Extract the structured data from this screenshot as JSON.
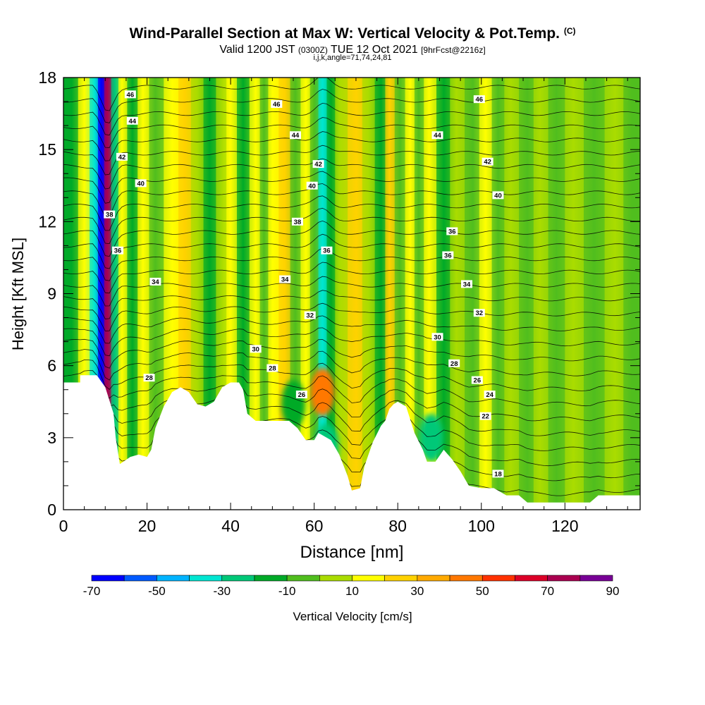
{
  "title": {
    "main": "Wind-Parallel Section at Max W: Vertical Velocity & Pot.Temp.",
    "copyright": "(C)",
    "valid_a": "Valid 1200 JST",
    "valid_utc": "(0300Z)",
    "valid_b": "TUE 12 Oct 2021",
    "forecast": "[9hrFcst@2216z]",
    "indices": "i,j,k,angle=71,74,24,81"
  },
  "chart_data": {
    "type": "heatmap",
    "xlabel": "Distance [nm]",
    "ylabel": "Height [Kft MSL]",
    "xlim": [
      0,
      138
    ],
    "ylim": [
      0,
      18
    ],
    "x_ticks": [
      0,
      20,
      40,
      60,
      80,
      100,
      120
    ],
    "y_ticks": [
      0,
      3,
      6,
      9,
      12,
      15,
      18
    ],
    "colorbar": {
      "label": "Vertical Velocity [cm/s]",
      "min": -70,
      "max": 90,
      "step": 10,
      "tick_labels": [
        "-70",
        "-50",
        "-30",
        "-10",
        "10",
        "30",
        "50",
        "70",
        "90"
      ],
      "colors": [
        "#0000ff",
        "#005aff",
        "#00b4ff",
        "#00e6d2",
        "#00c878",
        "#00aa28",
        "#50be1e",
        "#aadc00",
        "#ffff00",
        "#ffd200",
        "#ffaa00",
        "#ff7800",
        "#ff3200",
        "#dc0028",
        "#aa0050",
        "#780096"
      ]
    },
    "terrain": [
      [
        0,
        5.3
      ],
      [
        4,
        5.3
      ],
      [
        4,
        5.6
      ],
      [
        8,
        5.6
      ],
      [
        10,
        5.1
      ],
      [
        12,
        4.0
      ],
      [
        12.5,
        3.0
      ],
      [
        13.5,
        1.9
      ],
      [
        16,
        2.2
      ],
      [
        18,
        2.3
      ],
      [
        20,
        2.2
      ],
      [
        21,
        2.5
      ],
      [
        22,
        3.4
      ],
      [
        24,
        4.3
      ],
      [
        26,
        4.9
      ],
      [
        28,
        5.1
      ],
      [
        30,
        4.9
      ],
      [
        32,
        4.4
      ],
      [
        34,
        4.3
      ],
      [
        36,
        4.5
      ],
      [
        38,
        5.1
      ],
      [
        40,
        5.3
      ],
      [
        42,
        5.3
      ],
      [
        43,
        5.0
      ],
      [
        44,
        4.0
      ],
      [
        46,
        3.7
      ],
      [
        48,
        3.7
      ],
      [
        50,
        3.7
      ],
      [
        52,
        3.7
      ],
      [
        54,
        3.7
      ],
      [
        56,
        3.4
      ],
      [
        58,
        2.9
      ],
      [
        60,
        2.9
      ],
      [
        61,
        3.2
      ],
      [
        62,
        3.1
      ],
      [
        64,
        2.9
      ],
      [
        66,
        2.3
      ],
      [
        68,
        1.4
      ],
      [
        69,
        0.8
      ],
      [
        71,
        0.9
      ],
      [
        72,
        1.8
      ],
      [
        74,
        2.8
      ],
      [
        76,
        3.5
      ],
      [
        77,
        3.7
      ],
      [
        78,
        4.2
      ],
      [
        79,
        4.4
      ],
      [
        80,
        4.5
      ],
      [
        82,
        4.3
      ],
      [
        84,
        3.2
      ],
      [
        86,
        2.5
      ],
      [
        87,
        2.0
      ],
      [
        89,
        2.0
      ],
      [
        91,
        2.5
      ],
      [
        93,
        2.1
      ],
      [
        95,
        1.6
      ],
      [
        97,
        1.0
      ],
      [
        100,
        0.9
      ],
      [
        103,
        0.9
      ],
      [
        106,
        0.6
      ],
      [
        109,
        0.6
      ],
      [
        111,
        0.3
      ],
      [
        113,
        0.3
      ],
      [
        118,
        0.3
      ],
      [
        122,
        0.3
      ],
      [
        124,
        0.3
      ],
      [
        126,
        0.3
      ],
      [
        128,
        0.6
      ],
      [
        130,
        0.6
      ],
      [
        134,
        0.6
      ],
      [
        136,
        0.6
      ],
      [
        138,
        0.6
      ]
    ],
    "w_bands": [
      {
        "x": 2,
        "w": -15
      },
      {
        "x": 5,
        "w": 15
      },
      {
        "x": 7.5,
        "w": -40
      },
      {
        "x": 9,
        "w": -65
      },
      {
        "x": 10.5,
        "w": 70
      },
      {
        "x": 12.3,
        "w": -30
      },
      {
        "x": 14,
        "w": 12
      },
      {
        "x": 16.5,
        "w": -15
      },
      {
        "x": 19,
        "w": 10
      },
      {
        "x": 22,
        "w": -5
      },
      {
        "x": 26,
        "w": 18
      },
      {
        "x": 29,
        "w": 25
      },
      {
        "x": 32,
        "w": 5
      },
      {
        "x": 35,
        "w": -15
      },
      {
        "x": 38,
        "w": 8
      },
      {
        "x": 40,
        "w": 18
      },
      {
        "x": 43,
        "w": -12
      },
      {
        "x": 46,
        "w": 10
      },
      {
        "x": 48,
        "w": -10
      },
      {
        "x": 50,
        "w": 18
      },
      {
        "x": 53,
        "w": 25
      },
      {
        "x": 55.5,
        "w": -10
      },
      {
        "x": 58,
        "w": 15
      },
      {
        "x": 60,
        "w": -5
      },
      {
        "x": 62,
        "w": -35
      },
      {
        "x": 64,
        "w": -20
      },
      {
        "x": 66,
        "w": 8
      },
      {
        "x": 70,
        "w": 20
      },
      {
        "x": 73,
        "w": 5
      },
      {
        "x": 76,
        "w": -12
      },
      {
        "x": 78,
        "w": 25
      },
      {
        "x": 80.5,
        "w": -10
      },
      {
        "x": 83,
        "w": 18
      },
      {
        "x": 85,
        "w": -5
      },
      {
        "x": 87.5,
        "w": 15
      },
      {
        "x": 91,
        "w": -15
      },
      {
        "x": 94,
        "w": 5
      },
      {
        "x": 98,
        "w": -10
      },
      {
        "x": 101,
        "w": 14
      },
      {
        "x": 104,
        "w": -5
      },
      {
        "x": 107,
        "w": 5
      },
      {
        "x": 111,
        "w": -10
      },
      {
        "x": 114,
        "w": 5
      },
      {
        "x": 118,
        "w": -5
      },
      {
        "x": 122,
        "w": 5
      },
      {
        "x": 127,
        "w": -5
      },
      {
        "x": 132,
        "w": 5
      },
      {
        "x": 136,
        "w": -5
      }
    ],
    "w_blobs": [
      {
        "x": 62,
        "y": 4.9,
        "w": 45
      },
      {
        "x": 63,
        "y": 2.6,
        "w": -30
      },
      {
        "x": 88,
        "y": 3.0,
        "w": -30
      },
      {
        "x": 55,
        "y": 4.4,
        "w": -12
      },
      {
        "x": 30,
        "y": 3.5,
        "w": 20
      }
    ],
    "theta_contours": [
      {
        "label": "18",
        "base": 1.1,
        "x": 104,
        "y": 1.5
      },
      {
        "label": "22",
        "base": 3.7,
        "x": 101,
        "y": 3.9
      },
      {
        "label": "24",
        "base": 4.5,
        "x": 102,
        "y": 4.8
      },
      {
        "label": "26",
        "base": 4.8,
        "x": 57,
        "y": 4.8
      },
      {
        "label": "26",
        "base": 5.0,
        "x": 99,
        "y": 5.4
      },
      {
        "label": "28",
        "base": 5.5,
        "x": 20.5,
        "y": 5.5
      },
      {
        "label": "28",
        "base": 5.9,
        "x": 50,
        "y": 5.9
      },
      {
        "label": "28",
        "base": 6.0,
        "x": 93.5,
        "y": 6.1
      },
      {
        "label": "30",
        "base": 6.4,
        "x": 46,
        "y": 6.7
      },
      {
        "label": "30",
        "base": 7.0,
        "x": 89.5,
        "y": 7.2
      },
      {
        "label": "32",
        "base": 8.1,
        "x": 59,
        "y": 8.1
      },
      {
        "label": "32",
        "base": 8.4,
        "x": 99.5,
        "y": 8.2
      },
      {
        "label": "34",
        "base": 9.5,
        "x": 22,
        "y": 9.5
      },
      {
        "label": "34",
        "base": 9.6,
        "x": 53,
        "y": 9.6
      },
      {
        "label": "34",
        "base": 9.5,
        "x": 96.5,
        "y": 9.4
      },
      {
        "label": "36",
        "base": 10.8,
        "x": 13,
        "y": 10.8
      },
      {
        "label": "36",
        "base": 10.5,
        "x": 63,
        "y": 10.8
      },
      {
        "label": "36",
        "base": 10.8,
        "x": 92,
        "y": 10.6
      },
      {
        "label": "36",
        "base": 11.5,
        "x": 93,
        "y": 11.6
      },
      {
        "label": "38",
        "base": 12.3,
        "x": 11,
        "y": 12.3
      },
      {
        "label": "38",
        "base": 12.0,
        "x": 56,
        "y": 12.0
      },
      {
        "label": "40",
        "base": 13.6,
        "x": 18.5,
        "y": 13.6
      },
      {
        "label": "40",
        "base": 13.5,
        "x": 59.5,
        "y": 13.5
      },
      {
        "label": "40",
        "base": 13.2,
        "x": 104,
        "y": 13.1
      },
      {
        "label": "42",
        "base": 14.7,
        "x": 14,
        "y": 14.7
      },
      {
        "label": "42",
        "base": 14.4,
        "x": 61,
        "y": 14.4
      },
      {
        "label": "42",
        "base": 14.5,
        "x": 101.5,
        "y": 14.5
      },
      {
        "label": "44",
        "base": 16.2,
        "x": 16.5,
        "y": 16.2
      },
      {
        "label": "44",
        "base": 15.6,
        "x": 55.5,
        "y": 15.6
      },
      {
        "label": "44",
        "base": 15.6,
        "x": 89.5,
        "y": 15.6
      },
      {
        "label": "46",
        "base": 17.3,
        "x": 16,
        "y": 17.3
      },
      {
        "label": "46",
        "base": 16.9,
        "x": 51,
        "y": 16.9
      },
      {
        "label": "46",
        "base": 17.1,
        "x": 99.5,
        "y": 17.1
      }
    ]
  }
}
